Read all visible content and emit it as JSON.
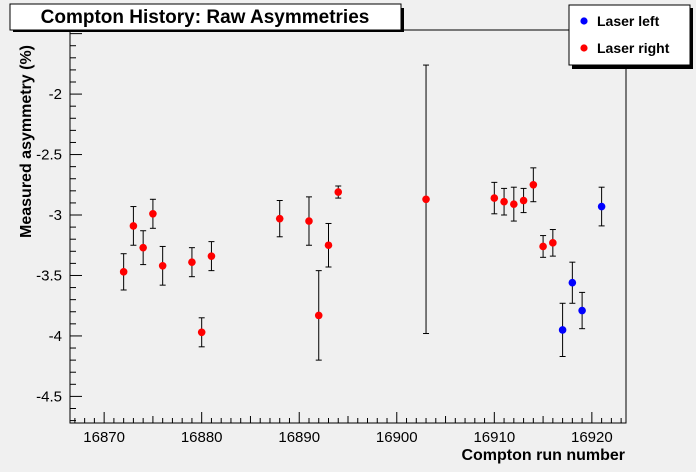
{
  "chart_data": {
    "type": "scatter",
    "title": "Compton History: Raw Asymmetries",
    "xlabel": "Compton run number",
    "ylabel": "Measured asymmetry (%)",
    "xlim": [
      16866.5,
      16923.5
    ],
    "ylim": [
      -4.72,
      -1.47
    ],
    "x_ticks": [
      16870,
      16880,
      16890,
      16900,
      16910,
      16920
    ],
    "x_tick_labels": [
      "16870",
      "16880",
      "16890",
      "16900",
      "16910",
      "16920"
    ],
    "y_ticks": [
      -2,
      -2.5,
      -3,
      -3.5,
      -4,
      -4.5
    ],
    "y_tick_labels": [
      "-2",
      "-2.5",
      "-3",
      "-3.5",
      "-4",
      "-4.5"
    ],
    "grid": false,
    "legend_position": "top-right",
    "series": [
      {
        "name": "Laser left",
        "color": "#0000ff",
        "points": [
          {
            "x": 16917,
            "y": -3.95,
            "err": 0.22
          },
          {
            "x": 16918,
            "y": -3.56,
            "err": 0.17
          },
          {
            "x": 16919,
            "y": -3.79,
            "err": 0.15
          },
          {
            "x": 16921,
            "y": -2.93,
            "err": 0.16
          }
        ]
      },
      {
        "name": "Laser right",
        "color": "#ff0000",
        "points": [
          {
            "x": 16872,
            "y": -3.47,
            "err": 0.15
          },
          {
            "x": 16873,
            "y": -3.09,
            "err": 0.16
          },
          {
            "x": 16874,
            "y": -3.27,
            "err": 0.14
          },
          {
            "x": 16875,
            "y": -2.99,
            "err": 0.12
          },
          {
            "x": 16876,
            "y": -3.42,
            "err": 0.16
          },
          {
            "x": 16879,
            "y": -3.39,
            "err": 0.12
          },
          {
            "x": 16880,
            "y": -3.97,
            "err": 0.12
          },
          {
            "x": 16881,
            "y": -3.34,
            "err": 0.12
          },
          {
            "x": 16888,
            "y": -3.03,
            "err": 0.15
          },
          {
            "x": 16891,
            "y": -3.05,
            "err": 0.2
          },
          {
            "x": 16892,
            "y": -3.83,
            "err": 0.37
          },
          {
            "x": 16893,
            "y": -3.25,
            "err": 0.18
          },
          {
            "x": 16894,
            "y": -2.81,
            "err": 0.05
          },
          {
            "x": 16903,
            "y": -2.87,
            "err": 1.11
          },
          {
            "x": 16910,
            "y": -2.86,
            "err": 0.13
          },
          {
            "x": 16911,
            "y": -2.89,
            "err": 0.11
          },
          {
            "x": 16912,
            "y": -2.91,
            "err": 0.14
          },
          {
            "x": 16913,
            "y": -2.88,
            "err": 0.1
          },
          {
            "x": 16914,
            "y": -2.75,
            "err": 0.14
          },
          {
            "x": 16915,
            "y": -3.26,
            "err": 0.09
          },
          {
            "x": 16916,
            "y": -3.23,
            "err": 0.11
          }
        ]
      }
    ]
  }
}
